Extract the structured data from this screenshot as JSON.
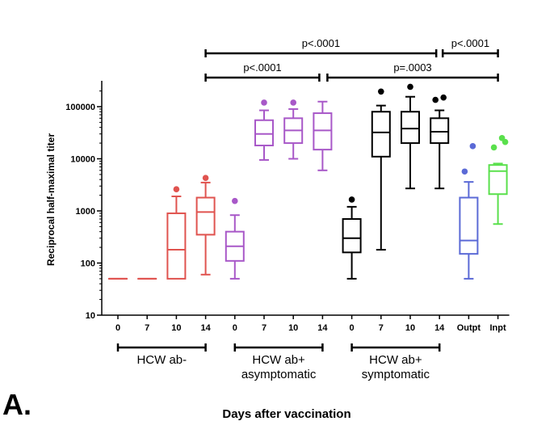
{
  "chart_data": {
    "type": "box",
    "panel_label": "A.",
    "ylabel": "Reciprocal half-maximal titer",
    "xlabel": "Days after vaccination",
    "yscale": "log10",
    "ylim": [
      10,
      200000
    ],
    "yticks": [
      10,
      100,
      1000,
      10000,
      100000
    ],
    "ytick_labels": [
      "10",
      "100",
      "1000",
      "10000",
      "100000"
    ],
    "categories": [
      "0",
      "7",
      "10",
      "14",
      "0",
      "7",
      "10",
      "14",
      "0",
      "7",
      "10",
      "14",
      "Outpt",
      "Inpt"
    ],
    "groups": [
      {
        "label": "HCW ab-",
        "from": 0,
        "to": 3
      },
      {
        "label": "HCW ab+ asymptomatic",
        "line1": "HCW ab+",
        "line2": "asymptomatic",
        "from": 4,
        "to": 7
      },
      {
        "label": "HCW ab+ symptomatic",
        "line1": "HCW ab+",
        "line2": "symptomatic",
        "from": 8,
        "to": 11
      }
    ],
    "series": [
      {
        "name": "HCW ab- day 0",
        "color": "#e0534f",
        "min": 50,
        "q1": 50,
        "median": 50,
        "q3": 50,
        "max": 50,
        "outliers": []
      },
      {
        "name": "HCW ab- day 7",
        "color": "#e0534f",
        "min": 50,
        "q1": 50,
        "median": 50,
        "q3": 50,
        "max": 50,
        "outliers": []
      },
      {
        "name": "HCW ab- day 10",
        "color": "#e0534f",
        "min": 50,
        "q1": 50,
        "median": 180,
        "q3": 900,
        "max": 1900,
        "outliers": [
          2600
        ]
      },
      {
        "name": "HCW ab- day 14",
        "color": "#e0534f",
        "min": 60,
        "q1": 350,
        "median": 950,
        "q3": 1800,
        "max": 3500,
        "outliers": [
          4300
        ]
      },
      {
        "name": "HCW ab+ asymptomatic day 0",
        "color": "#a858c8",
        "min": 50,
        "q1": 110,
        "median": 210,
        "q3": 400,
        "max": 830,
        "outliers": [
          1550
        ]
      },
      {
        "name": "HCW ab+ asymptomatic day 7",
        "color": "#a858c8",
        "min": 9500,
        "q1": 18000,
        "median": 30000,
        "q3": 55000,
        "max": 85000,
        "outliers": [
          120000
        ]
      },
      {
        "name": "HCW ab+ asymptomatic day 10",
        "color": "#a858c8",
        "min": 10000,
        "q1": 20000,
        "median": 35000,
        "q3": 60000,
        "max": 90000,
        "outliers": [
          120000
        ]
      },
      {
        "name": "HCW ab+ asymptomatic day 14",
        "color": "#a858c8",
        "min": 6000,
        "q1": 15000,
        "median": 35000,
        "q3": 75000,
        "max": 125000,
        "outliers": []
      },
      {
        "name": "HCW ab+ symptomatic day 0",
        "color": "#000000",
        "min": 50,
        "q1": 160,
        "median": 300,
        "q3": 700,
        "max": 1200,
        "outliers": [
          1650
        ]
      },
      {
        "name": "HCW ab+ symptomatic day 7",
        "color": "#000000",
        "min": 180,
        "q1": 11000,
        "median": 32000,
        "q3": 80000,
        "max": 105000,
        "outliers": [
          195000
        ]
      },
      {
        "name": "HCW ab+ symptomatic day 10",
        "color": "#000000",
        "min": 2700,
        "q1": 20000,
        "median": 38000,
        "q3": 80000,
        "max": 155000,
        "outliers": [
          240000
        ]
      },
      {
        "name": "HCW ab+ symptomatic day 14",
        "color": "#000000",
        "min": 2700,
        "q1": 20000,
        "median": 33000,
        "q3": 60000,
        "max": 85000,
        "outliers": [
          135000,
          150000
        ]
      },
      {
        "name": "Outpt",
        "color": "#5b6ad6",
        "min": 50,
        "q1": 150,
        "median": 270,
        "q3": 1800,
        "max": 3600,
        "outliers": [
          5700,
          17500
        ]
      },
      {
        "name": "Inpt",
        "color": "#5ae04c",
        "min": 560,
        "q1": 2100,
        "median": 5800,
        "q3": 7600,
        "max": 8100,
        "outliers": [
          16500,
          25000,
          21000
        ]
      }
    ],
    "significance": [
      {
        "label": "p<.0001",
        "from": 3,
        "to": 11
      },
      {
        "label": "p<.0001",
        "from": 11,
        "to": 13
      },
      {
        "label": "p<.0001",
        "from": 3,
        "to": 7
      },
      {
        "label": "p=.0003",
        "from": 7,
        "to": 13
      }
    ]
  }
}
